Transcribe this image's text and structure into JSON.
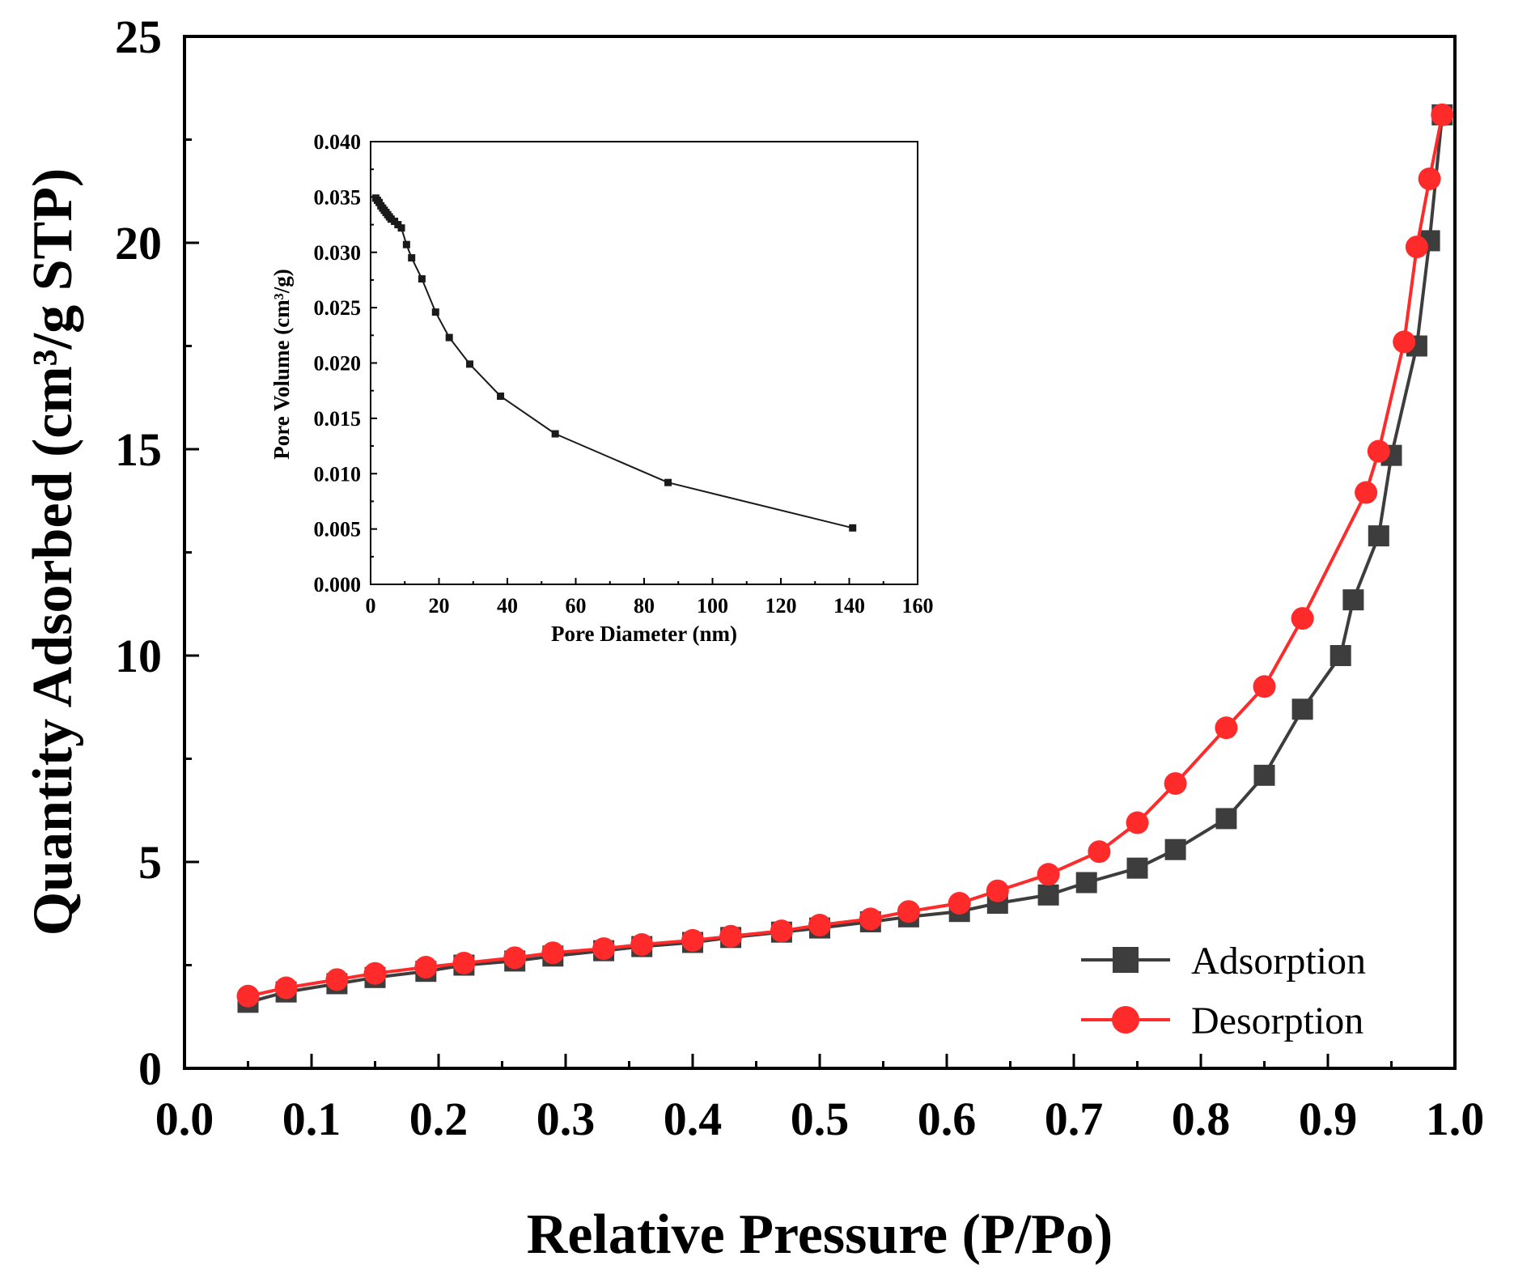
{
  "chart_data": [
    {
      "type": "line",
      "title": "",
      "xlabel": "Relative Pressure (P/Po)",
      "ylabel": "Quantity Adsorbed (cm³/g STP)",
      "xlim": [
        0.0,
        1.0
      ],
      "ylim": [
        0,
        25
      ],
      "x_ticks": [
        "0.0",
        "0.1",
        "0.2",
        "0.3",
        "0.4",
        "0.5",
        "0.6",
        "0.7",
        "0.8",
        "0.9",
        "1.0"
      ],
      "y_ticks": [
        "0",
        "5",
        "10",
        "15",
        "20",
        "25"
      ],
      "legend_position": "bottom-right",
      "series": [
        {
          "name": "Adsorption",
          "color": "#3d3d3d",
          "marker": "square",
          "x": [
            0.05,
            0.08,
            0.12,
            0.15,
            0.19,
            0.22,
            0.26,
            0.29,
            0.33,
            0.36,
            0.4,
            0.43,
            0.47,
            0.5,
            0.54,
            0.57,
            0.61,
            0.64,
            0.68,
            0.71,
            0.75,
            0.78,
            0.82,
            0.85,
            0.88,
            0.91,
            0.92,
            0.94,
            0.95,
            0.97,
            0.98,
            0.99
          ],
          "y": [
            1.6,
            1.85,
            2.05,
            2.2,
            2.35,
            2.5,
            2.6,
            2.72,
            2.85,
            2.95,
            3.05,
            3.17,
            3.3,
            3.4,
            3.55,
            3.67,
            3.8,
            4.0,
            4.2,
            4.5,
            4.85,
            5.3,
            6.05,
            7.1,
            8.7,
            10.0,
            11.35,
            12.9,
            14.85,
            17.5,
            20.05,
            23.1
          ]
        },
        {
          "name": "Desorption",
          "color": "#ff2a2a",
          "marker": "circle",
          "x": [
            0.05,
            0.08,
            0.12,
            0.15,
            0.19,
            0.22,
            0.26,
            0.29,
            0.33,
            0.36,
            0.4,
            0.43,
            0.47,
            0.5,
            0.54,
            0.57,
            0.61,
            0.64,
            0.68,
            0.72,
            0.75,
            0.78,
            0.82,
            0.85,
            0.88,
            0.93,
            0.94,
            0.96,
            0.97,
            0.98,
            0.99
          ],
          "y": [
            1.75,
            1.95,
            2.15,
            2.3,
            2.45,
            2.55,
            2.68,
            2.8,
            2.9,
            3.0,
            3.1,
            3.2,
            3.33,
            3.47,
            3.62,
            3.8,
            4.0,
            4.3,
            4.7,
            5.25,
            5.95,
            6.9,
            8.25,
            9.25,
            10.9,
            13.95,
            14.95,
            17.6,
            19.9,
            21.55,
            23.1
          ]
        }
      ]
    },
    {
      "type": "line",
      "title": "",
      "xlabel": "Pore Diameter (nm)",
      "ylabel": "Pore Volume (cm³/g)",
      "xlim": [
        0,
        160
      ],
      "ylim": [
        0.0,
        0.04
      ],
      "x_ticks": [
        "0",
        "20",
        "40",
        "60",
        "80",
        "100",
        "120",
        "140",
        "160"
      ],
      "y_ticks": [
        "0.000",
        "0.005",
        "0.010",
        "0.015",
        "0.020",
        "0.025",
        "0.030",
        "0.035",
        "0.040"
      ],
      "series": [
        {
          "name": "Pore Volume",
          "color": "#1a1a1a",
          "marker": "square",
          "x": [
            1.5,
            2,
            2.5,
            3,
            3.5,
            4,
            4.5,
            5,
            5.5,
            6,
            7,
            8,
            9,
            10.5,
            12,
            15,
            19,
            23,
            29,
            38,
            54,
            87,
            141
          ],
          "y": [
            0.0349,
            0.0347,
            0.0345,
            0.0342,
            0.034,
            0.0338,
            0.0336,
            0.0334,
            0.0332,
            0.033,
            0.0328,
            0.0325,
            0.0322,
            0.0307,
            0.0295,
            0.0276,
            0.0246,
            0.0223,
            0.0199,
            0.017,
            0.0136,
            0.0092,
            0.0051
          ]
        }
      ]
    }
  ]
}
